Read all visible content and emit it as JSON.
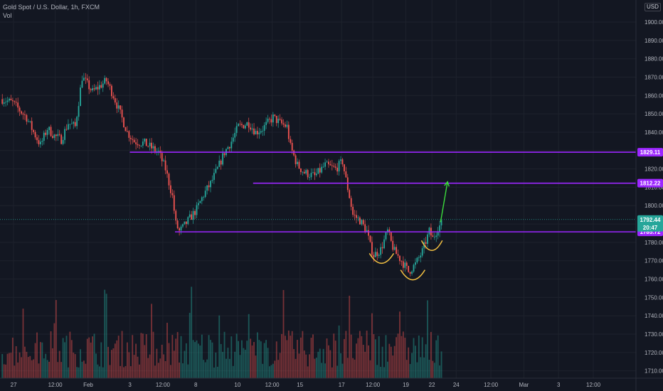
{
  "header": {
    "symbol_line": "Gold Spot / U.S. Dollar, 1h, FXCM",
    "volume_label": "Vol"
  },
  "currency_button": "USD",
  "colors": {
    "background": "#131722",
    "grid": "#1e222d",
    "up": "#26a69a",
    "down": "#ef5350",
    "level": "#9c27ff",
    "arrow": "#3cdc3c",
    "pattern": "#f5c242",
    "text": "#b2b5be"
  },
  "chart_data": {
    "type": "candlestick",
    "title": "Gold Spot / U.S. Dollar, 1h, FXCM",
    "xlabel": "",
    "ylabel": "",
    "ylim": [
      1706,
      1912
    ],
    "y_ticks": [
      1710,
      1720,
      1730,
      1740,
      1750,
      1760,
      1770,
      1780,
      1790,
      1800,
      1810,
      1820,
      1830,
      1840,
      1850,
      1860,
      1870,
      1880,
      1890,
      1900
    ],
    "x_ticks": [
      "27",
      "12:00",
      "Feb",
      "3",
      "12:00",
      "8",
      "10",
      "12:00",
      "15",
      "17",
      "12:00",
      "19",
      "22",
      "24",
      "12:00",
      "Mar",
      "3",
      "12:00"
    ],
    "x_tick_index": [
      7,
      31,
      50,
      74,
      93,
      112,
      136,
      156,
      172,
      196,
      214,
      233,
      248,
      262,
      282,
      301,
      321,
      341
    ],
    "bars_total": 360,
    "price_path": [
      [
        0,
        1858
      ],
      [
        6,
        1856
      ],
      [
        10,
        1852
      ],
      [
        14,
        1848
      ],
      [
        18,
        1840
      ],
      [
        22,
        1833
      ],
      [
        26,
        1842
      ],
      [
        30,
        1838
      ],
      [
        34,
        1836
      ],
      [
        38,
        1845
      ],
      [
        42,
        1843
      ],
      [
        46,
        1870
      ],
      [
        49,
        1866
      ],
      [
        52,
        1862
      ],
      [
        56,
        1865
      ],
      [
        60,
        1868
      ],
      [
        64,
        1860
      ],
      [
        68,
        1850
      ],
      [
        72,
        1840
      ],
      [
        76,
        1835
      ],
      [
        82,
        1834
      ],
      [
        90,
        1829
      ],
      [
        94,
        1820
      ],
      [
        98,
        1805
      ],
      [
        100,
        1790
      ],
      [
        102,
        1786
      ],
      [
        104,
        1788
      ],
      [
        108,
        1793
      ],
      [
        112,
        1798
      ],
      [
        116,
        1806
      ],
      [
        120,
        1812
      ],
      [
        124,
        1820
      ],
      [
        128,
        1829
      ],
      [
        132,
        1835
      ],
      [
        136,
        1843
      ],
      [
        142,
        1845
      ],
      [
        146,
        1840
      ],
      [
        150,
        1842
      ],
      [
        156,
        1848
      ],
      [
        160,
        1845
      ],
      [
        164,
        1843
      ],
      [
        166,
        1832
      ],
      [
        170,
        1822
      ],
      [
        174,
        1818
      ],
      [
        180,
        1816
      ],
      [
        186,
        1822
      ],
      [
        192,
        1820
      ],
      [
        196,
        1824
      ],
      [
        198,
        1814
      ],
      [
        200,
        1805
      ],
      [
        202,
        1795
      ],
      [
        206,
        1792
      ],
      [
        210,
        1786
      ],
      [
        212,
        1778
      ],
      [
        214,
        1773
      ],
      [
        218,
        1776
      ],
      [
        222,
        1786
      ],
      [
        224,
        1780
      ],
      [
        226,
        1775
      ],
      [
        230,
        1770
      ],
      [
        234,
        1764
      ],
      [
        238,
        1768
      ],
      [
        242,
        1775
      ],
      [
        246,
        1786
      ],
      [
        248,
        1782
      ],
      [
        251,
        1788
      ],
      [
        253,
        1790
      ]
    ],
    "volume_scale_max": 100,
    "levels": [
      {
        "price": 1829.11,
        "label": "1829.11",
        "from_bar": 74
      },
      {
        "price": 1812.22,
        "label": "1812.22",
        "from_bar": 145
      },
      {
        "price": 1785.72,
        "label": "1785.72",
        "from_bar": 100
      }
    ],
    "last_price": {
      "value": "1792.44",
      "countdown": "20:47"
    },
    "annotations": [
      {
        "type": "arrow",
        "from": [
          253,
          1791
        ],
        "to": [
          257,
          1813
        ]
      },
      {
        "type": "arc",
        "bar_from": 212,
        "bar_to": 226,
        "price": 1774
      },
      {
        "type": "arc",
        "bar_from": 230,
        "bar_to": 244,
        "price": 1765
      },
      {
        "type": "arc",
        "bar_from": 242,
        "bar_to": 254,
        "price": 1781
      }
    ]
  }
}
